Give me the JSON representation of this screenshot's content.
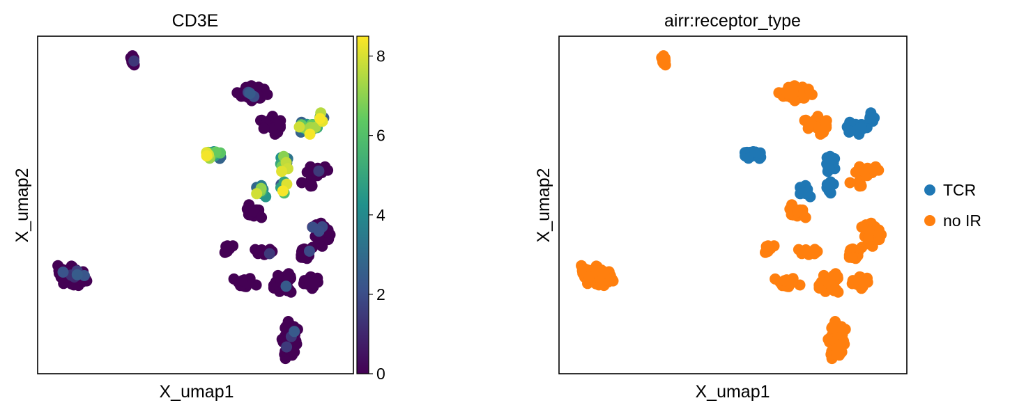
{
  "chart_data": [
    {
      "type": "scatter",
      "title": "CD3E",
      "xlabel": "X_umap1",
      "ylabel": "X_umap2",
      "color_by": "CD3E expression",
      "colormap": "viridis",
      "colorbar": {
        "range": [
          0,
          8.5
        ],
        "ticks": [
          "0",
          "2",
          "4",
          "6",
          "8"
        ]
      },
      "grid": false,
      "note": "UMAP embedding; axes have no tick labels"
    },
    {
      "type": "scatter",
      "title": "airr:receptor_type",
      "xlabel": "X_umap1",
      "ylabel": "X_umap2",
      "color_by": "airr:receptor_type",
      "legend": {
        "placement": "right",
        "entries": [
          {
            "label": "TCR",
            "color": "#1f77b4"
          },
          {
            "label": "no IR",
            "color": "#ff7f0e"
          }
        ]
      },
      "grid": false
    }
  ],
  "colors": {
    "tcr": "#1f77b4",
    "no_ir": "#ff7f0e",
    "viridis": [
      "#440154",
      "#3b528b",
      "#21918c",
      "#5ec962",
      "#fde725"
    ]
  }
}
